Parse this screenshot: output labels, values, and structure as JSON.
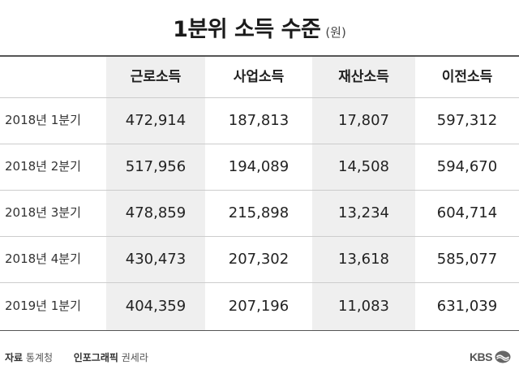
{
  "title": "1분위 소득 수준",
  "unit": "(원)",
  "columns": [
    "근로소득",
    "사업소득",
    "재산소득",
    "이전소득"
  ],
  "rows": [
    {
      "label": "2018년 1분기",
      "values": [
        "472,914",
        "187,813",
        "17,807",
        "597,312"
      ]
    },
    {
      "label": "2018년 2분기",
      "values": [
        "517,956",
        "194,089",
        "14,508",
        "594,670"
      ]
    },
    {
      "label": "2018년 3분기",
      "values": [
        "478,859",
        "215,898",
        "13,234",
        "604,714"
      ]
    },
    {
      "label": "2018년 4분기",
      "values": [
        "430,473",
        "207,302",
        "13,618",
        "585,077"
      ]
    },
    {
      "label": "2019년 1분기",
      "values": [
        "404,359",
        "207,196",
        "11,083",
        "631,039"
      ]
    }
  ],
  "footer": {
    "source_label": "자료",
    "source": "통계청",
    "graphic_label": "인포그래픽",
    "graphic_author": "권세라"
  },
  "logo": {
    "text": "KBS"
  },
  "colors": {
    "shade": "#efefef",
    "rule": "#555555",
    "row_line": "#cccccc"
  }
}
